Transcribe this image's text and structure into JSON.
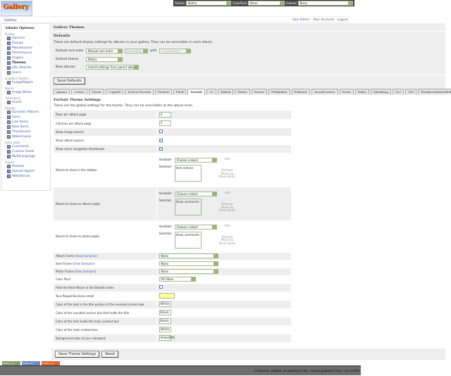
{
  "logo": "Gallery",
  "topbar": {
    "theme_label": "Theme",
    "theme": "Matrix",
    "colorpack_label": "ColorPack",
    "colorpack": "None",
    "frames_label": "Frames",
    "frames": "None"
  },
  "breadcrumb": "Gallery",
  "userlinks": [
    "Site Admin",
    "Your Account",
    "Logout"
  ],
  "sidebar": {
    "title": "Admin Options",
    "groups": [
      {
        "name": "Gallery",
        "items": [
          "General",
          "Groups",
          "Maintenance",
          "Performance",
          "Plugins",
          "Themes",
          "URL Rewrite",
          "Users"
        ]
      },
      {
        "name": "Graphics Toolkits",
        "items": [
          "ImageMagick"
        ]
      },
      {
        "name": "Blocks",
        "items": [
          "Image Block"
        ]
      },
      {
        "name": "Commerce",
        "items": [
          "eCard"
        ]
      },
      {
        "name": "Display",
        "items": [
          "Dynamic Albums",
          "Icons",
          "Link Items",
          "New Items",
          "Thumbnails",
          "Watermarks"
        ]
      },
      {
        "name": "Extra Data",
        "items": [
          "Comments",
          "Custom Fields",
          "MultiLanguage"
        ]
      },
      {
        "name": "Import",
        "items": [
          "Remote",
          "Upload Applet",
          "Web/Server"
        ]
      }
    ],
    "active": "Themes"
  },
  "main": {
    "title": "Gallery Themes",
    "defaults_heading": "Defaults",
    "defaults_desc": "These are default display settings for albums in your gallery. They can be overridden in each album.",
    "sort_label": "Default sort order",
    "sort": "Manual sort order",
    "direction": "Ascending",
    "with_label": "with",
    "presort": "« no presort »",
    "theme_label": "Default theme",
    "theme": "Matrix",
    "new_albums_label": "New albums",
    "new_albums": "Inherit settings from parent album",
    "save_defaults": "Save Defaults",
    "tabs": [
      "Ajaxian",
      "Carbon",
      "Classic",
      "Copyleft",
      "EclecticThreads",
      "Floatrix",
      "Fluid",
      "ForSale",
      "G2",
      "Hybrid",
      "Matrix",
      "Nature",
      "PGlightbox",
      "PGtheme",
      "RoundCorners",
      "Siriux",
      "Slider",
      "SplatBang",
      "Tico",
      "Tile",
      "WordpressEmbedded"
    ],
    "active_tab": "ForSale",
    "settings_heading": "ForSale Theme Settings",
    "settings_desc": "These are the global settings for the theme. They can be overridden at the album level.",
    "block_ui": {
      "available": "Available",
      "selected": "Selected",
      "choose": "Choose a block",
      "add": "Add",
      "remove": "Remove",
      "move_up": "Move Up",
      "move_down": "Move Down"
    },
    "view_samples": "View Samples",
    "rows": [
      {
        "label": "Rows per album page",
        "type": "text",
        "value": "3"
      },
      {
        "label": "Columns per album page",
        "type": "text",
        "value": "3"
      },
      {
        "label": "Show image owners",
        "type": "check",
        "checked": false
      },
      {
        "label": "Show album owners",
        "type": "check",
        "checked": true
      },
      {
        "label": "Show micro navigation thumbnails",
        "type": "check",
        "checked": true
      },
      {
        "label": "Blocks to show in the sidebar",
        "type": "blocks",
        "selected": "Item actions"
      },
      {
        "label": "Blocks to show on album pages",
        "type": "blocks",
        "selected": "Show comments"
      },
      {
        "label": "Blocks to show on photo pages",
        "type": "blocks",
        "selected": "Show comments"
      },
      {
        "label": "Album Frame",
        "samples": true,
        "type": "select",
        "value": "None"
      },
      {
        "label": "Item Frame",
        "samples": true,
        "type": "select",
        "value": "None"
      },
      {
        "label": "Photo Frame",
        "samples": true,
        "type": "select",
        "value": "None"
      },
      {
        "label": "Color Pack",
        "type": "select2",
        "value": "PG Silver"
      },
      {
        "label": "Hide the Root Album in the BreadCrumbs",
        "type": "check",
        "checked": false
      },
      {
        "label": "Your Paypal Business email",
        "type": "text",
        "value": "",
        "yellow": true
      },
      {
        "label": "Color of the text in the title portion of the rounded corners box",
        "type": "text",
        "value": "White"
      },
      {
        "label": "Color of the rounded corners box that holds the title",
        "type": "text",
        "value": "Black"
      },
      {
        "label": "Color of the text inside the main content box",
        "type": "text",
        "value": "Black"
      },
      {
        "label": "Color of the main content box",
        "type": "text",
        "value": "White"
      },
      {
        "label": "Background color of your colorpack",
        "type": "text",
        "value": "#ebd095"
      }
    ],
    "save_settings": "Save Theme Settings",
    "reset": "Reset"
  },
  "badges": [
    "Gallery 2.2",
    "Gallery 2.2",
    "Gallery 2.2"
  ],
  "footer": "Contact: admin at gallery2.hu - www.gallery2.hu - (c) 2006"
}
